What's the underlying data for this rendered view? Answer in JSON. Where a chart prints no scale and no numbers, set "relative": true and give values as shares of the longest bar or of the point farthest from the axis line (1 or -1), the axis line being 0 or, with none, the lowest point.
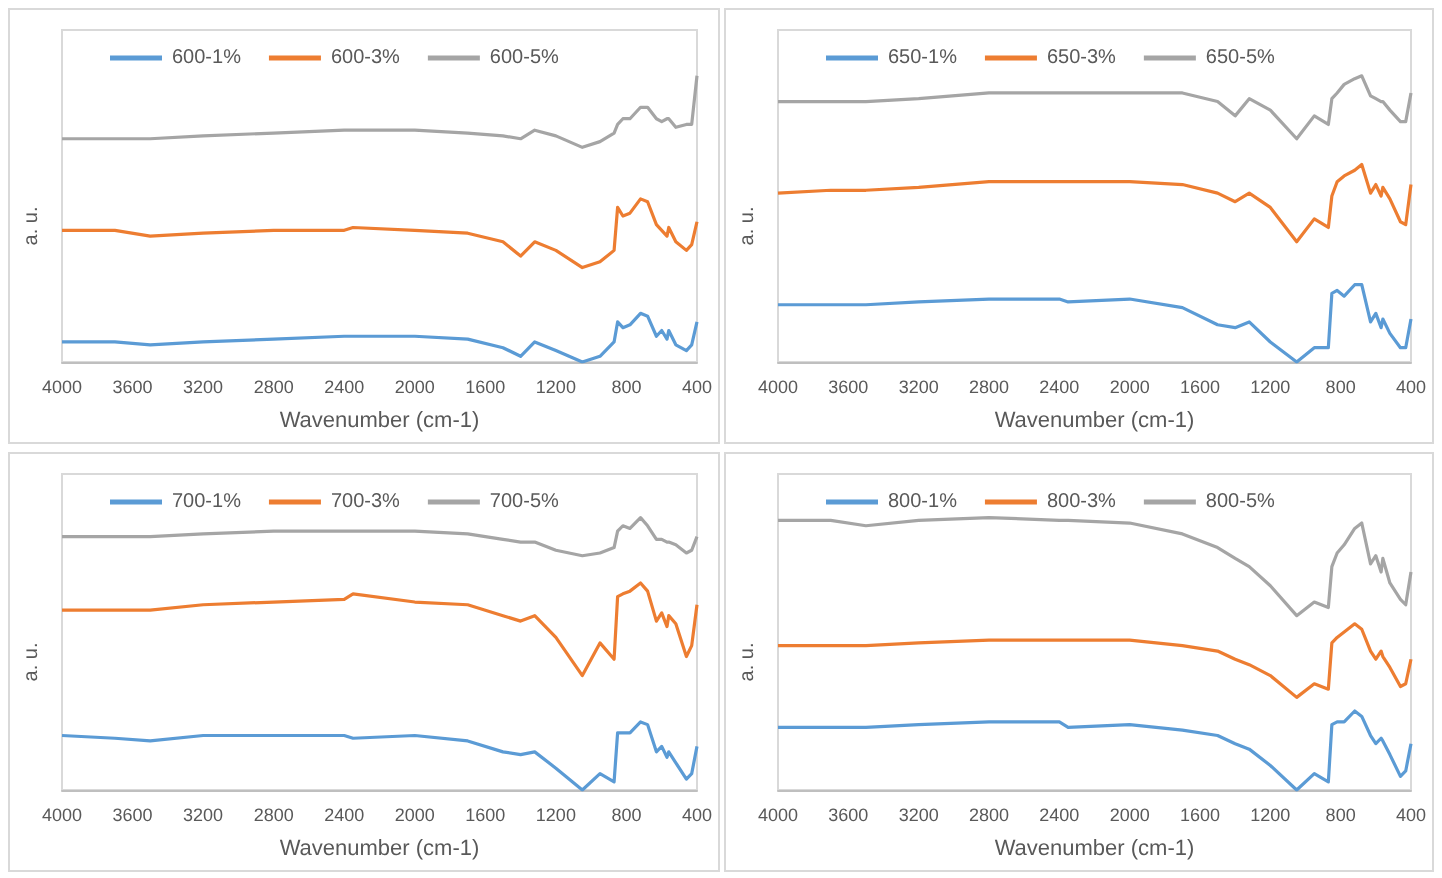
{
  "chart_data": [
    {
      "type": "line",
      "relative": true,
      "xlabel": "Wavenumber (cm-1)",
      "ylabel": "a. u.",
      "xlim": [
        4000,
        400
      ],
      "xticks": [
        4000,
        3600,
        3200,
        2800,
        2400,
        2000,
        1600,
        1200,
        800,
        400
      ],
      "tick_labels": "x",
      "legend": "top left",
      "grid": false,
      "x": [
        4000,
        3700,
        3500,
        3200,
        2800,
        2400,
        2350,
        2000,
        1700,
        1500,
        1400,
        1320,
        1200,
        1050,
        950,
        870,
        850,
        820,
        780,
        720,
        680,
        630,
        600,
        570,
        560,
        520,
        460,
        430,
        400
      ],
      "series": [
        {
          "name": "600-1%",
          "color": "#5b9bd5",
          "values": [
            0.07,
            0.07,
            0.06,
            0.07,
            0.08,
            0.09,
            0.09,
            0.09,
            0.08,
            0.05,
            0.02,
            0.07,
            0.04,
            0,
            0.02,
            0.07,
            0.14,
            0.12,
            0.13,
            0.17,
            0.16,
            0.09,
            0.11,
            0.08,
            0.11,
            0.06,
            0.04,
            0.06,
            0.14
          ]
        },
        {
          "name": "600-3%",
          "color": "#ed7d31",
          "values": [
            0.46,
            0.46,
            0.44,
            0.45,
            0.46,
            0.46,
            0.47,
            0.46,
            0.45,
            0.42,
            0.37,
            0.42,
            0.39,
            0.33,
            0.35,
            0.39,
            0.54,
            0.51,
            0.52,
            0.57,
            0.56,
            0.48,
            0.46,
            0.44,
            0.47,
            0.42,
            0.39,
            0.41,
            0.49
          ]
        },
        {
          "name": "600-5%",
          "color": "#a5a5a5",
          "values": [
            0.78,
            0.78,
            0.78,
            0.79,
            0.8,
            0.81,
            0.81,
            0.81,
            0.8,
            0.79,
            0.78,
            0.81,
            0.79,
            0.75,
            0.77,
            0.8,
            0.83,
            0.85,
            0.85,
            0.89,
            0.89,
            0.85,
            0.84,
            0.85,
            0.85,
            0.82,
            0.83,
            0.83,
            1
          ]
        }
      ]
    },
    {
      "type": "line",
      "relative": true,
      "xlabel": "Wavenumber (cm-1)",
      "ylabel": "a. u.",
      "xlim": [
        4000,
        400
      ],
      "xticks": [
        4000,
        3600,
        3200,
        2800,
        2400,
        2000,
        1600,
        1200,
        800,
        400
      ],
      "tick_labels": "x",
      "legend": "top left",
      "grid": false,
      "x": [
        4000,
        3700,
        3500,
        3200,
        2800,
        2400,
        2350,
        2000,
        1700,
        1500,
        1400,
        1320,
        1200,
        1050,
        950,
        870,
        850,
        820,
        780,
        720,
        680,
        630,
        600,
        570,
        560,
        520,
        460,
        430,
        400
      ],
      "series": [
        {
          "name": "650-1%",
          "color": "#5b9bd5",
          "values": [
            0.2,
            0.2,
            0.2,
            0.21,
            0.22,
            0.22,
            0.21,
            0.22,
            0.19,
            0.13,
            0.12,
            0.14,
            0.07,
            0,
            0.05,
            0.05,
            0.24,
            0.25,
            0.23,
            0.27,
            0.27,
            0.14,
            0.17,
            0.12,
            0.15,
            0.1,
            0.05,
            0.05,
            0.15
          ]
        },
        {
          "name": "650-3%",
          "color": "#ed7d31",
          "values": [
            0.59,
            0.6,
            0.6,
            0.61,
            0.63,
            0.63,
            0.63,
            0.63,
            0.62,
            0.59,
            0.56,
            0.59,
            0.54,
            0.42,
            0.5,
            0.47,
            0.58,
            0.63,
            0.65,
            0.67,
            0.69,
            0.59,
            0.62,
            0.58,
            0.61,
            0.57,
            0.49,
            0.48,
            0.62
          ]
        },
        {
          "name": "650-5%",
          "color": "#a5a5a5",
          "values": [
            0.91,
            0.91,
            0.91,
            0.92,
            0.94,
            0.94,
            0.94,
            0.94,
            0.94,
            0.91,
            0.86,
            0.92,
            0.88,
            0.78,
            0.86,
            0.83,
            0.92,
            0.94,
            0.97,
            0.99,
            1,
            0.93,
            0.92,
            0.91,
            0.91,
            0.88,
            0.84,
            0.84,
            0.94
          ]
        }
      ]
    },
    {
      "type": "line",
      "relative": true,
      "xlabel": "Wavenumber (cm-1)",
      "ylabel": "a. u.",
      "xlim": [
        4000,
        400
      ],
      "xticks": [
        4000,
        3600,
        3200,
        2800,
        2400,
        2000,
        1600,
        1200,
        800,
        400
      ],
      "tick_labels": "x",
      "legend": "top left",
      "grid": false,
      "x": [
        4000,
        3700,
        3500,
        3200,
        2800,
        2400,
        2350,
        2000,
        1700,
        1500,
        1400,
        1320,
        1200,
        1050,
        950,
        870,
        850,
        820,
        780,
        720,
        680,
        630,
        600,
        570,
        560,
        520,
        460,
        430,
        400
      ],
      "series": [
        {
          "name": "700-1%",
          "color": "#5b9bd5",
          "values": [
            0.2,
            0.19,
            0.18,
            0.2,
            0.2,
            0.2,
            0.19,
            0.2,
            0.18,
            0.14,
            0.13,
            0.14,
            0.08,
            0,
            0.06,
            0.03,
            0.21,
            0.21,
            0.21,
            0.25,
            0.24,
            0.14,
            0.16,
            0.12,
            0.14,
            0.1,
            0.04,
            0.06,
            0.16
          ]
        },
        {
          "name": "700-3%",
          "color": "#ed7d31",
          "values": [
            0.66,
            0.66,
            0.66,
            0.68,
            0.69,
            0.7,
            0.72,
            0.69,
            0.68,
            0.64,
            0.62,
            0.64,
            0.56,
            0.42,
            0.54,
            0.48,
            0.71,
            0.72,
            0.73,
            0.76,
            0.73,
            0.62,
            0.65,
            0.6,
            0.64,
            0.61,
            0.49,
            0.53,
            0.68
          ]
        },
        {
          "name": "700-5%",
          "color": "#a5a5a5",
          "values": [
            0.93,
            0.93,
            0.93,
            0.94,
            0.95,
            0.95,
            0.95,
            0.95,
            0.94,
            0.92,
            0.91,
            0.91,
            0.88,
            0.86,
            0.87,
            0.89,
            0.95,
            0.97,
            0.96,
            1,
            0.97,
            0.92,
            0.92,
            0.91,
            0.91,
            0.9,
            0.87,
            0.88,
            0.93
          ]
        }
      ]
    },
    {
      "type": "line",
      "relative": true,
      "xlabel": "Wavenumber (cm-1)",
      "ylabel": "a. u.",
      "xlim": [
        4000,
        400
      ],
      "xticks": [
        4000,
        3600,
        3200,
        2800,
        2400,
        2000,
        1600,
        1200,
        800,
        400
      ],
      "tick_labels": "x",
      "legend": "top left",
      "grid": false,
      "x": [
        4000,
        3700,
        3500,
        3200,
        2800,
        2400,
        2350,
        2000,
        1700,
        1500,
        1400,
        1320,
        1200,
        1050,
        950,
        870,
        850,
        820,
        780,
        720,
        680,
        630,
        600,
        570,
        560,
        520,
        460,
        430,
        400
      ],
      "series": [
        {
          "name": "800-1%",
          "color": "#5b9bd5",
          "values": [
            0.23,
            0.23,
            0.23,
            0.24,
            0.25,
            0.25,
            0.23,
            0.24,
            0.22,
            0.2,
            0.17,
            0.15,
            0.09,
            0,
            0.06,
            0.03,
            0.24,
            0.25,
            0.25,
            0.29,
            0.27,
            0.2,
            0.17,
            0.19,
            0.18,
            0.13,
            0.05,
            0.07,
            0.17
          ]
        },
        {
          "name": "800-3%",
          "color": "#ed7d31",
          "values": [
            0.53,
            0.53,
            0.53,
            0.54,
            0.55,
            0.55,
            0.55,
            0.55,
            0.53,
            0.51,
            0.48,
            0.46,
            0.42,
            0.34,
            0.39,
            0.37,
            0.54,
            0.56,
            0.58,
            0.61,
            0.59,
            0.51,
            0.48,
            0.51,
            0.49,
            0.45,
            0.38,
            0.39,
            0.48
          ]
        },
        {
          "name": "800-5%",
          "color": "#a5a5a5",
          "values": [
            0.99,
            0.99,
            0.97,
            0.99,
            1,
            0.99,
            0.99,
            0.98,
            0.94,
            0.89,
            0.85,
            0.82,
            0.75,
            0.64,
            0.69,
            0.67,
            0.82,
            0.87,
            0.9,
            0.96,
            0.98,
            0.83,
            0.86,
            0.8,
            0.85,
            0.76,
            0.7,
            0.68,
            0.8
          ]
        }
      ]
    }
  ]
}
